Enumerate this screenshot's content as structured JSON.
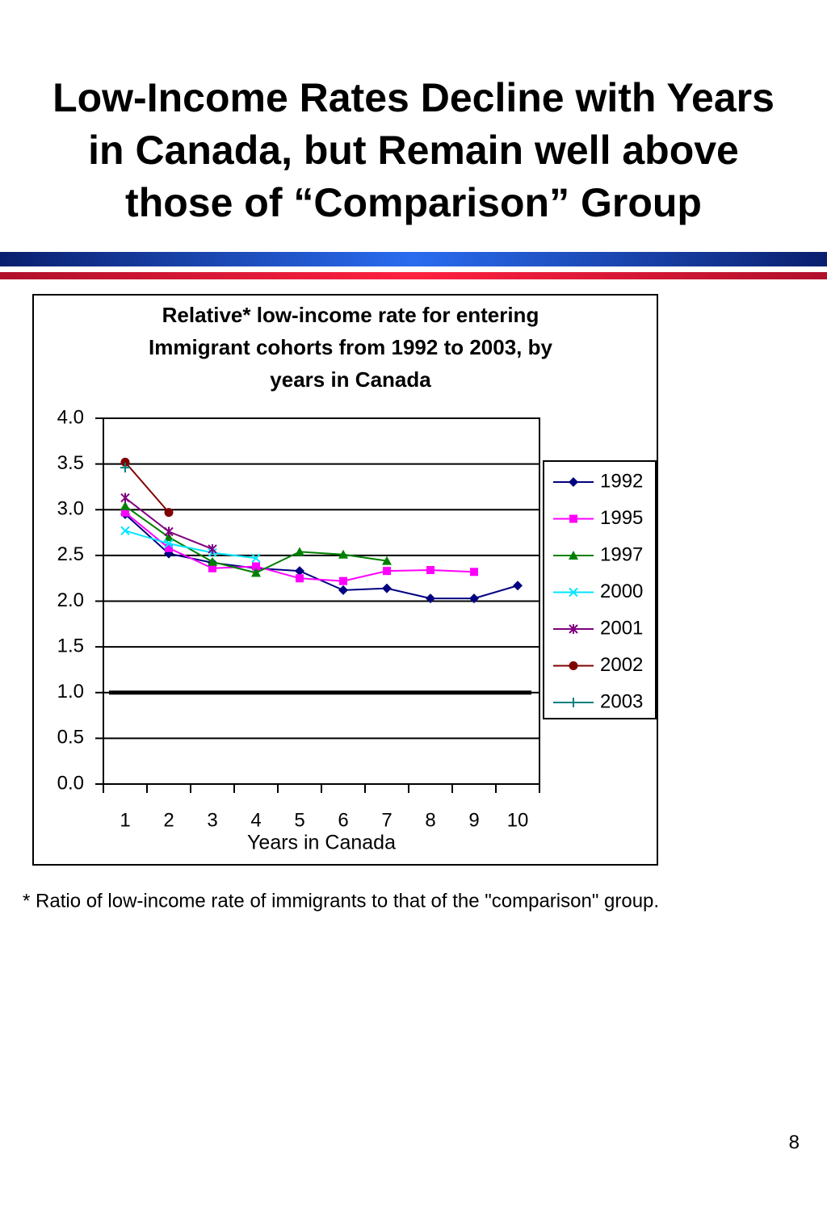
{
  "slide_title_lines": [
    "Low-Income Rates Decline with Years",
    "in Canada, but Remain well above",
    "those of “Comparison” Group"
  ],
  "chart_data": {
    "type": "line",
    "title_lines": [
      "Relative* low-income rate for entering",
      "Immigrant cohorts from 1992 to 2003, by",
      "years in Canada"
    ],
    "x_label": "Years in Canada",
    "categories": [
      "1",
      "2",
      "3",
      "4",
      "5",
      "6",
      "7",
      "8",
      "9",
      "10"
    ],
    "ylim": [
      0,
      4
    ],
    "yticks": [
      {
        "value": 0,
        "label": "0.0"
      },
      0.5,
      {
        "value": 1,
        "label": "1.0"
      },
      1.5,
      {
        "value": 2,
        "label": "2.0"
      },
      2.5,
      {
        "value": 3,
        "label": "3.0"
      },
      3.5,
      {
        "value": 4,
        "label": "4.0"
      }
    ],
    "grid": true,
    "reference_line": 1,
    "legend": "right",
    "series": [
      {
        "name": "1992",
        "color": "#000080",
        "marker": "diamond",
        "values": [
          2.95,
          2.52,
          2.42,
          2.36,
          2.33,
          2.12,
          2.14,
          2.03,
          2.03,
          2.17
        ]
      },
      {
        "name": "1995",
        "color": "#ff00ff",
        "marker": "square",
        "values": [
          2.97,
          2.58,
          2.36,
          2.38,
          2.25,
          2.22,
          2.33,
          2.34,
          2.32,
          null
        ]
      },
      {
        "name": "1997",
        "color": "#008000",
        "marker": "triangle",
        "values": [
          3.04,
          2.7,
          2.43,
          2.31,
          2.54,
          2.51,
          2.44,
          null,
          null,
          null
        ]
      },
      {
        "name": "2000",
        "color": "#00e5ff",
        "marker": "x",
        "values": [
          2.77,
          2.63,
          2.53,
          2.47,
          null,
          null,
          null,
          null,
          null,
          null
        ]
      },
      {
        "name": "2001",
        "color": "#800080",
        "marker": "star",
        "values": [
          3.13,
          2.76,
          2.57,
          null,
          null,
          null,
          null,
          null,
          null,
          null
        ]
      },
      {
        "name": "2002",
        "color": "#800000",
        "marker": "circle",
        "values": [
          3.52,
          2.97,
          null,
          null,
          null,
          null,
          null,
          null,
          null,
          null
        ]
      },
      {
        "name": "2003",
        "color": "#008080",
        "marker": "plus",
        "values": [
          3.46,
          null,
          null,
          null,
          null,
          null,
          null,
          null,
          null,
          null
        ]
      }
    ]
  },
  "footnote": "* Ratio of low-income rate of immigrants to that of the \"comparison\"  group.",
  "page_number": "8"
}
